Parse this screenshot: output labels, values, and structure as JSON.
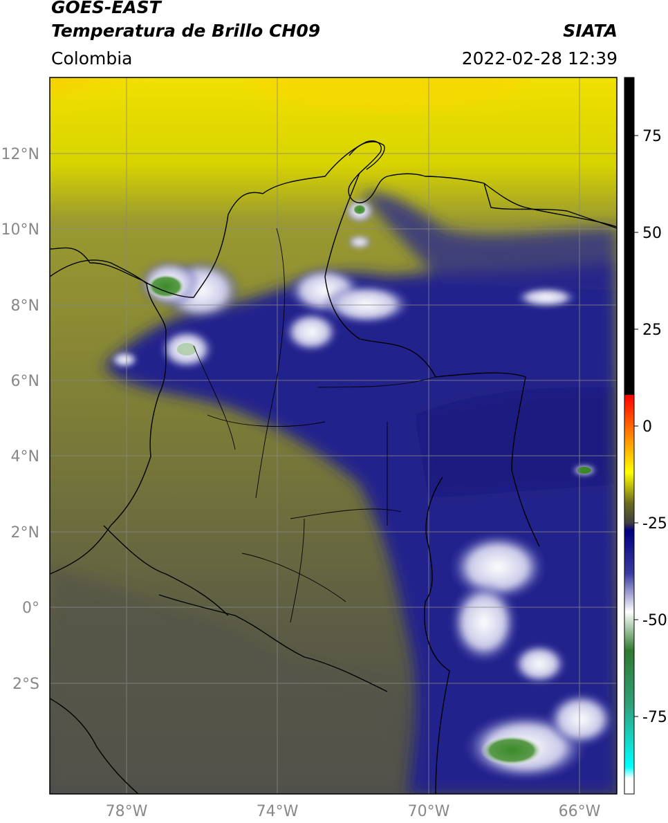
{
  "header": {
    "satellite": "GOES-EAST",
    "product": "Temperatura de Brillo CH09",
    "region": "Colombia",
    "agency": "SIATA",
    "datetime": "2022-02-28 12:39"
  },
  "map": {
    "lat_ticks": [
      {
        "label": "12°N",
        "value": 12
      },
      {
        "label": "10°N",
        "value": 10
      },
      {
        "label": "8°N",
        "value": 8
      },
      {
        "label": "6°N",
        "value": 6
      },
      {
        "label": "4°N",
        "value": 4
      },
      {
        "label": "2°N",
        "value": 2
      },
      {
        "label": "0°",
        "value": 0
      },
      {
        "label": "2°S",
        "value": -2
      }
    ],
    "lon_ticks": [
      {
        "label": "78°W",
        "value": -78
      },
      {
        "label": "74°W",
        "value": -74
      },
      {
        "label": "70°W",
        "value": -70
      },
      {
        "label": "66°W",
        "value": -66
      }
    ],
    "colors": {
      "warm_cloudfree": "#5a5a46",
      "olive": "#8a8a30",
      "yellow": "#e8e800",
      "orange": "#ff8c00",
      "deep_convection_blue": "#1a1a8a",
      "cold_top_white": "#e8e8f4",
      "coldest_green": "#3a8a2a",
      "borders": "#000000",
      "grid": "#888888"
    }
  },
  "colorbar": {
    "labels": [
      "75",
      "50",
      "25",
      "0",
      "-25",
      "-50",
      "-75"
    ],
    "values": [
      75,
      50,
      25,
      0,
      -25,
      -50,
      -75
    ],
    "range": [
      -95,
      90
    ],
    "stops": [
      {
        "value": 90,
        "color": "#000000"
      },
      {
        "value": 8,
        "color": "#000000"
      },
      {
        "value": 8,
        "color": "#ff0000"
      },
      {
        "value": -2,
        "color": "#ff8000"
      },
      {
        "value": -12,
        "color": "#ffff00"
      },
      {
        "value": -20,
        "color": "#6a6a20"
      },
      {
        "value": -25,
        "color": "#404040"
      },
      {
        "value": -27,
        "color": "#000080"
      },
      {
        "value": -38,
        "color": "#3a3aa0"
      },
      {
        "value": -48,
        "color": "#ffffff"
      },
      {
        "value": -58,
        "color": "#2f7a2f"
      },
      {
        "value": -72,
        "color": "#2fa07a"
      },
      {
        "value": -88,
        "color": "#00ffff"
      },
      {
        "value": -91,
        "color": "#ffffff"
      },
      {
        "value": -95,
        "color": "#ffffff"
      }
    ]
  }
}
